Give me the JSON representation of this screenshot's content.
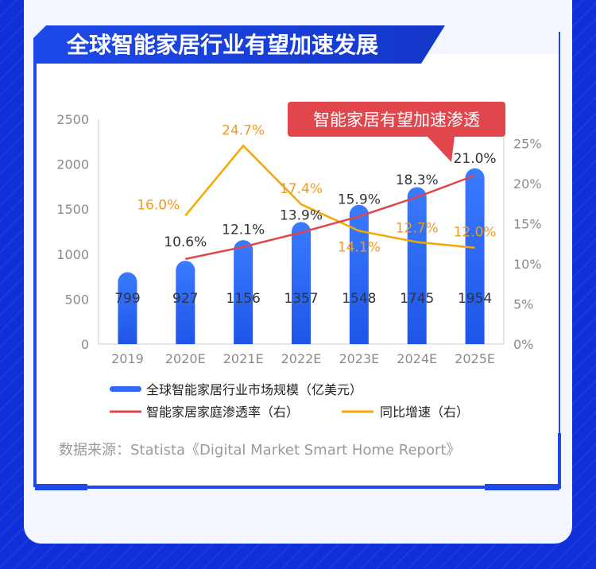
{
  "title": "全球智能家居行业有望加速发展",
  "callout": "智能家居有望加速渗透",
  "source": "数据来源：Statista《Digital Market Smart Home Report》",
  "colors": {
    "background": "#0f2fd8",
    "bar": "#2f6cf6",
    "penetration_line": "#e0474c",
    "growth_line": "#f5a800",
    "callout_bg": "#e2464d",
    "title_bg": "#1b48e6"
  },
  "chart_data": {
    "type": "bar",
    "categories": [
      "2019",
      "2020E",
      "2021E",
      "2022E",
      "2023E",
      "2024E",
      "2025E"
    ],
    "ylim_left": [
      0,
      2500
    ],
    "yticks_left": [
      "0",
      "500",
      "1000",
      "1500",
      "2000",
      "2500"
    ],
    "ylim_right": [
      0,
      28
    ],
    "yticks_right": [
      "0%",
      "5%",
      "10%",
      "15%",
      "20%",
      "25%"
    ],
    "grid": false,
    "legend_position": "bottom",
    "series": [
      {
        "name": "全球智能家居行业市场规模（亿美元）",
        "type": "bar",
        "axis": "left",
        "values": [
          799,
          927,
          1156,
          1357,
          1548,
          1745,
          1954
        ],
        "labels": [
          "799",
          "927",
          "1156",
          "1357",
          "1548",
          "1745",
          "1954"
        ]
      },
      {
        "name": "智能家居家庭渗透率（右）",
        "type": "line",
        "axis": "right",
        "values": [
          null,
          10.6,
          12.1,
          13.9,
          15.9,
          18.3,
          21.0
        ],
        "labels": [
          "",
          "10.6%",
          "12.1%",
          "13.9%",
          "15.9%",
          "18.3%",
          "21.0%"
        ]
      },
      {
        "name": "同比增速（右）",
        "type": "line",
        "axis": "right",
        "values": [
          null,
          16.0,
          24.7,
          17.4,
          14.1,
          12.7,
          12.0
        ],
        "labels": [
          "",
          "16.0%",
          "24.7%",
          "17.4%",
          "14.1%",
          "12.7%",
          "12.0%"
        ]
      }
    ]
  }
}
